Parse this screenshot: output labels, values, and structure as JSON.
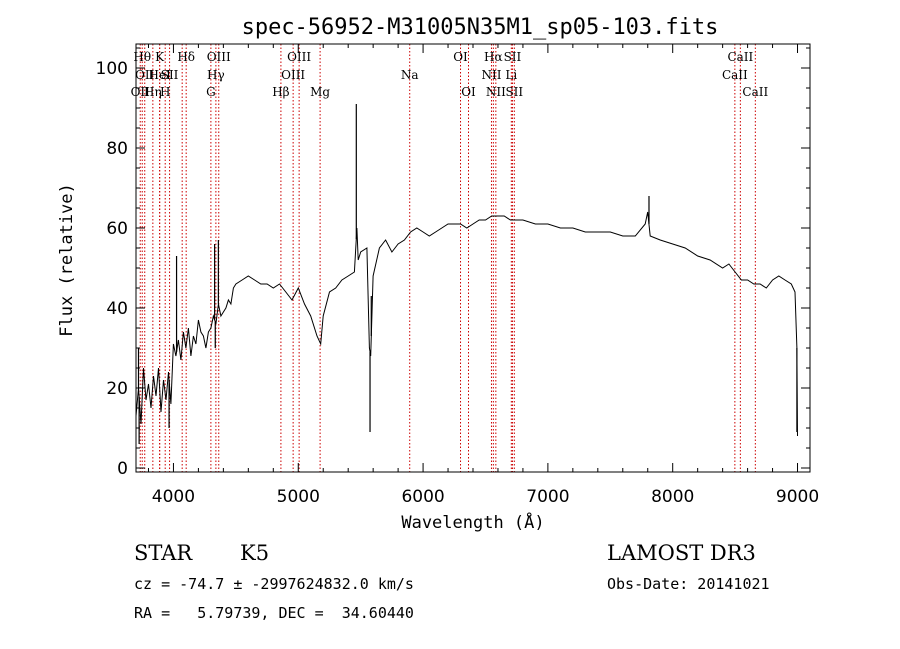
{
  "chart_data": {
    "type": "line",
    "title": "spec-56952-M31005N35M1_sp05-103.fits",
    "xlabel": "Wavelength (Å)",
    "ylabel": "Flux (relative)",
    "xlim": [
      3700,
      9100
    ],
    "ylim": [
      -1,
      106
    ],
    "x_ticks": [
      4000,
      5000,
      6000,
      7000,
      8000,
      9000
    ],
    "x_tick_labels": [
      "4000",
      "5000",
      "6000",
      "7000",
      "8000",
      "9000"
    ],
    "y_ticks": [
      0,
      20,
      40,
      60,
      80,
      100
    ],
    "y_tick_labels": [
      "0",
      "20",
      "40",
      "60",
      "80",
      "100"
    ],
    "grid": false,
    "line_color": "#000000",
    "marker_color": "#cc0000",
    "spectrum": {
      "x": [
        3700,
        3720,
        3740,
        3760,
        3780,
        3800,
        3820,
        3840,
        3860,
        3880,
        3900,
        3920,
        3940,
        3960,
        3980,
        4000,
        4020,
        4040,
        4060,
        4080,
        4100,
        4120,
        4140,
        4160,
        4180,
        4200,
        4220,
        4240,
        4260,
        4280,
        4300,
        4320,
        4340,
        4360,
        4380,
        4400,
        4420,
        4440,
        4460,
        4480,
        4500,
        4550,
        4600,
        4650,
        4700,
        4750,
        4800,
        4850,
        4900,
        4950,
        5000,
        5050,
        5100,
        5150,
        5180,
        5200,
        5250,
        5300,
        5350,
        5400,
        5450,
        5470,
        5480,
        5500,
        5550,
        5570,
        5580,
        5600,
        5650,
        5700,
        5750,
        5800,
        5850,
        5900,
        5950,
        6000,
        6050,
        6100,
        6150,
        6200,
        6250,
        6300,
        6350,
        6400,
        6450,
        6500,
        6550,
        6600,
        6650,
        6700,
        6750,
        6800,
        6900,
        7000,
        7100,
        7200,
        7300,
        7400,
        7500,
        7600,
        7700,
        7780,
        7800,
        7820,
        7900,
        8000,
        8100,
        8200,
        8300,
        8400,
        8450,
        8500,
        8550,
        8600,
        8650,
        8700,
        8750,
        8800,
        8850,
        8900,
        8950,
        8980,
        8995,
        9000
      ],
      "y": [
        13,
        20,
        11,
        25,
        17,
        21,
        15,
        23,
        18,
        25,
        14,
        22,
        17,
        24,
        16,
        31,
        28,
        32,
        27,
        34,
        30,
        35,
        28,
        33,
        31,
        37,
        34,
        33,
        30,
        34,
        35,
        38,
        36,
        41,
        38,
        39,
        40,
        42,
        41,
        45,
        46,
        47,
        48,
        47,
        46,
        46,
        45,
        46,
        44,
        42,
        45,
        41,
        38,
        33,
        31,
        38,
        44,
        45,
        47,
        48,
        49,
        60,
        52,
        54,
        55,
        30,
        28,
        48,
        55,
        57,
        54,
        56,
        57,
        59,
        60,
        59,
        58,
        59,
        60,
        61,
        61,
        61,
        60,
        61,
        62,
        62,
        63,
        63,
        63,
        62,
        62,
        62,
        61,
        61,
        60,
        60,
        59,
        59,
        59,
        58,
        58,
        61,
        64,
        58,
        57,
        56,
        55,
        53,
        52,
        50,
        51,
        49,
        47,
        47,
        46,
        46,
        45,
        47,
        48,
        47,
        46,
        44,
        30,
        8
      ]
    },
    "spikes": [
      {
        "x": 3720,
        "y": 30
      },
      {
        "x": 3725,
        "y": 6
      },
      {
        "x": 3965,
        "y": 10
      },
      {
        "x": 4025,
        "y": 53
      },
      {
        "x": 4330,
        "y": 56
      },
      {
        "x": 4335,
        "y": 30
      },
      {
        "x": 4360,
        "y": 57
      },
      {
        "x": 5465,
        "y": 91
      },
      {
        "x": 5575,
        "y": 9
      },
      {
        "x": 5585,
        "y": 43
      },
      {
        "x": 7810,
        "y": 68
      },
      {
        "x": 8995,
        "y": 9
      }
    ],
    "line_markers": [
      {
        "x": 3750,
        "label": "Hθ",
        "row": 0
      },
      {
        "x": 3770,
        "label": "OII",
        "row": 1
      },
      {
        "x": 3734,
        "label": "OII",
        "row": 2
      },
      {
        "x": 3835,
        "label": "Hη",
        "row": 2
      },
      {
        "x": 3889,
        "label": "K",
        "row": 0
      },
      {
        "x": 3890,
        "label": "HeI",
        "row": 1
      },
      {
        "x": 3934,
        "label": "H",
        "row": 2
      },
      {
        "x": 3969,
        "label": "SII",
        "row": 1
      },
      {
        "x": 4102,
        "label": "Hδ",
        "row": 0
      },
      {
        "x": 4070,
        "label": "",
        "row": 0
      },
      {
        "x": 4300,
        "label": "G",
        "row": 2
      },
      {
        "x": 4340,
        "label": "Hγ",
        "row": 1
      },
      {
        "x": 4363,
        "label": "OIII",
        "row": 0
      },
      {
        "x": 4861,
        "label": "Hβ",
        "row": 2
      },
      {
        "x": 4959,
        "label": "OIII",
        "row": 1
      },
      {
        "x": 5007,
        "label": "OIII",
        "row": 0
      },
      {
        "x": 5175,
        "label": "Mg",
        "row": 2
      },
      {
        "x": 5893,
        "label": "Na",
        "row": 1
      },
      {
        "x": 6300,
        "label": "OI",
        "row": 0
      },
      {
        "x": 6364,
        "label": "OI",
        "row": 2
      },
      {
        "x": 6548,
        "label": "NII",
        "row": 1
      },
      {
        "x": 6563,
        "label": "Hα",
        "row": 0
      },
      {
        "x": 6583,
        "label": "NII",
        "row": 2
      },
      {
        "x": 6707,
        "label": "Li",
        "row": 1
      },
      {
        "x": 6716,
        "label": "SII",
        "row": 0
      },
      {
        "x": 6731,
        "label": "SII",
        "row": 2
      },
      {
        "x": 8498,
        "label": "CaII",
        "row": 1
      },
      {
        "x": 8542,
        "label": "CaII",
        "row": 0
      },
      {
        "x": 8662,
        "label": "CaII",
        "row": 2
      }
    ]
  },
  "info": {
    "object_class": "STAR",
    "subclass": "K5",
    "survey": "LAMOST DR3",
    "redshift": "cz = -74.7 ± -2997624832.0 km/s",
    "obs_date": "Obs-Date: 20141021",
    "coords": "RA =   5.79739, DEC =  34.60440"
  }
}
